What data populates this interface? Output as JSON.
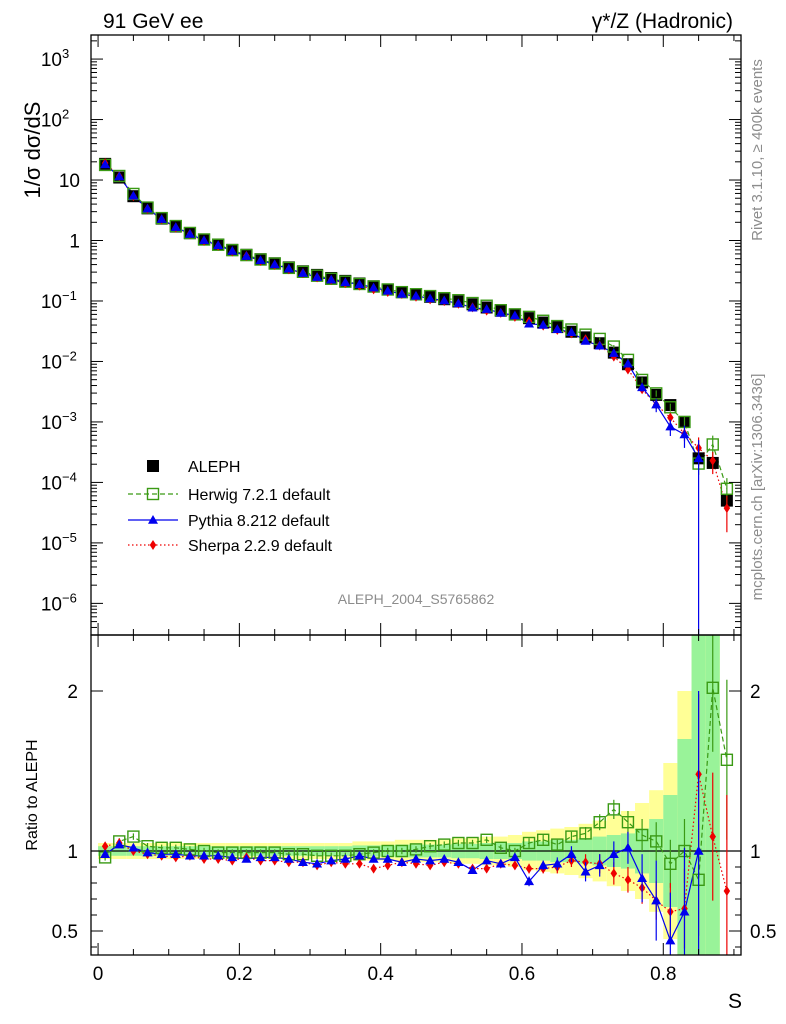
{
  "header": {
    "left": "91 GeV ee",
    "right": "γ*/Z (Hadronic)"
  },
  "side": {
    "rivet": "Rivet 3.1.10, ≥ 400k events",
    "mcplots": "mcplots.cern.ch [arXiv:1306.3436]"
  },
  "analysis_id": "ALEPH_2004_S5765862",
  "chart_data": {
    "type": "line",
    "title": "γ*/Z (Hadronic)",
    "xlabel": "S",
    "ylabel": "1/σ dσ/dS",
    "ratio_ylabel": "Ratio to ALEPH",
    "xlim": [
      -0.01,
      0.91
    ],
    "ylim": [
      3e-07,
      2500
    ],
    "yscale": "log",
    "ratio_ylim": [
      0.35,
      2.35
    ],
    "legend_position": "lower-left",
    "x_ticks": [
      "0",
      "0.2",
      "0.4",
      "0.6",
      "0.8"
    ],
    "x_tick_values": [
      0,
      0.2,
      0.4,
      0.6,
      0.8
    ],
    "y_ticks": [
      {
        "base": "10",
        "exp": "3",
        "v": 1000
      },
      {
        "base": "10",
        "exp": "2",
        "v": 100
      },
      {
        "base": "10",
        "exp": "",
        "v": 10
      },
      {
        "base": "1",
        "exp": "",
        "v": 1
      },
      {
        "base": "10",
        "exp": "−1",
        "v": 0.1
      },
      {
        "base": "10",
        "exp": "−2",
        "v": 0.01
      },
      {
        "base": "10",
        "exp": "−3",
        "v": 0.001
      },
      {
        "base": "10",
        "exp": "−4",
        "v": 0.0001
      },
      {
        "base": "10",
        "exp": "−5",
        "v": 1e-05
      },
      {
        "base": "10",
        "exp": "−6",
        "v": 1e-06
      }
    ],
    "ratio_ticks": [
      {
        "label": "2",
        "v": 2
      },
      {
        "label": "1",
        "v": 1
      },
      {
        "label": "0.5",
        "v": 0.5
      }
    ],
    "x": [
      0.01,
      0.03,
      0.05,
      0.07,
      0.09,
      0.11,
      0.13,
      0.15,
      0.17,
      0.19,
      0.21,
      0.23,
      0.25,
      0.27,
      0.29,
      0.31,
      0.33,
      0.35,
      0.37,
      0.39,
      0.41,
      0.43,
      0.45,
      0.47,
      0.49,
      0.51,
      0.53,
      0.55,
      0.57,
      0.59,
      0.61,
      0.63,
      0.65,
      0.67,
      0.69,
      0.71,
      0.73,
      0.75,
      0.77,
      0.79,
      0.81,
      0.83,
      0.85,
      0.87,
      0.89
    ],
    "series": [
      {
        "name": "ALEPH",
        "color": "#000000",
        "style": "data",
        "values": [
          18.5,
          11.0,
          5.4,
          3.4,
          2.3,
          1.7,
          1.32,
          1.04,
          0.86,
          0.7,
          0.58,
          0.49,
          0.42,
          0.36,
          0.31,
          0.27,
          0.24,
          0.215,
          0.195,
          0.175,
          0.155,
          0.14,
          0.128,
          0.117,
          0.107,
          0.098,
          0.088,
          0.078,
          0.069,
          0.06,
          0.052,
          0.044,
          0.037,
          0.031,
          0.025,
          0.02,
          0.014,
          0.009,
          0.0045,
          0.0028,
          0.0019,
          0.001,
          0.00025,
          0.00021,
          5e-05
        ],
        "band_inner": [
          0.03,
          0.03,
          0.03,
          0.03,
          0.03,
          0.03,
          0.03,
          0.03,
          0.03,
          0.03,
          0.03,
          0.03,
          0.03,
          0.03,
          0.03,
          0.03,
          0.03,
          0.03,
          0.035,
          0.035,
          0.035,
          0.04,
          0.04,
          0.04,
          0.04,
          0.045,
          0.045,
          0.05,
          0.05,
          0.05,
          0.06,
          0.06,
          0.07,
          0.07,
          0.08,
          0.09,
          0.1,
          0.11,
          0.14,
          0.2,
          0.35,
          0.7,
          2.0,
          2.0,
          0.0
        ],
        "band_outer": [
          0.05,
          0.05,
          0.05,
          0.05,
          0.05,
          0.05,
          0.05,
          0.05,
          0.05,
          0.05,
          0.05,
          0.05,
          0.05,
          0.05,
          0.05,
          0.05,
          0.05,
          0.05,
          0.06,
          0.06,
          0.06,
          0.07,
          0.07,
          0.07,
          0.07,
          0.08,
          0.08,
          0.09,
          0.09,
          0.1,
          0.12,
          0.13,
          0.14,
          0.15,
          0.17,
          0.19,
          0.22,
          0.25,
          0.3,
          0.38,
          0.55,
          1.0,
          2.0,
          2.0,
          0.0
        ]
      },
      {
        "name": "Herwig 7.2.1 default",
        "color": "#3a9a14",
        "style": "dashed",
        "marker": "open-square",
        "ratio": [
          0.96,
          1.06,
          1.09,
          1.03,
          1.02,
          1.02,
          1.01,
          1.0,
          0.99,
          0.99,
          0.99,
          0.99,
          0.99,
          0.98,
          0.98,
          0.97,
          0.97,
          0.97,
          0.98,
          0.99,
          1.0,
          1.0,
          1.01,
          1.03,
          1.04,
          1.05,
          1.05,
          1.07,
          1.02,
          1.0,
          1.05,
          1.07,
          1.04,
          1.09,
          1.11,
          1.18,
          1.26,
          1.18,
          1.1,
          1.06,
          0.92,
          1.0,
          0.82,
          2.02,
          1.57
        ],
        "ratio_err": [
          0.02,
          0.02,
          0.02,
          0.02,
          0.02,
          0.02,
          0.02,
          0.02,
          0.02,
          0.02,
          0.02,
          0.02,
          0.02,
          0.02,
          0.02,
          0.02,
          0.02,
          0.02,
          0.02,
          0.02,
          0.02,
          0.02,
          0.02,
          0.02,
          0.02,
          0.02,
          0.02,
          0.02,
          0.02,
          0.02,
          0.03,
          0.03,
          0.03,
          0.03,
          0.04,
          0.05,
          0.06,
          0.07,
          0.1,
          0.12,
          0.15,
          0.2,
          0.35,
          0.4,
          0.5
        ]
      },
      {
        "name": "Pythia 8.212 default",
        "color": "#0000ee",
        "style": "solid",
        "marker": "triangle",
        "ratio": [
          0.98,
          1.04,
          1.02,
          0.99,
          0.98,
          0.98,
          0.97,
          0.97,
          0.97,
          0.96,
          0.95,
          0.96,
          0.96,
          0.95,
          0.93,
          0.92,
          0.94,
          0.95,
          0.97,
          0.95,
          0.95,
          0.93,
          0.95,
          0.94,
          0.95,
          0.93,
          0.88,
          0.94,
          0.92,
          0.96,
          0.81,
          0.91,
          0.92,
          0.98,
          0.87,
          0.91,
          0.98,
          1.02,
          0.83,
          0.69,
          0.44,
          0.62,
          1.0,
          null,
          null
        ],
        "ratio_err": [
          0.01,
          0.01,
          0.01,
          0.01,
          0.01,
          0.01,
          0.01,
          0.01,
          0.01,
          0.01,
          0.01,
          0.01,
          0.01,
          0.01,
          0.01,
          0.01,
          0.01,
          0.01,
          0.01,
          0.01,
          0.01,
          0.01,
          0.01,
          0.02,
          0.02,
          0.02,
          0.02,
          0.02,
          0.02,
          0.02,
          0.03,
          0.03,
          0.04,
          0.05,
          0.06,
          0.07,
          0.08,
          0.1,
          0.15,
          0.25,
          0.3,
          0.4,
          1.0,
          0,
          0
        ]
      },
      {
        "name": "Sherpa 2.2.9 default",
        "color": "#ee0000",
        "style": "dotted",
        "marker": "diamond",
        "ratio": [
          1.03,
          1.05,
          1.0,
          0.98,
          0.97,
          0.96,
          0.97,
          0.95,
          0.95,
          0.94,
          0.96,
          0.94,
          0.94,
          0.93,
          0.93,
          0.91,
          0.93,
          0.92,
          0.92,
          0.89,
          0.91,
          0.93,
          0.92,
          0.91,
          0.93,
          0.92,
          0.89,
          0.89,
          0.92,
          0.91,
          0.89,
          0.89,
          0.9,
          0.94,
          0.93,
          0.92,
          0.86,
          0.82,
          0.77,
          0.69,
          0.62,
          0.64,
          1.48,
          1.09,
          0.75
        ],
        "ratio_err": [
          0.01,
          0.01,
          0.01,
          0.01,
          0.01,
          0.01,
          0.01,
          0.01,
          0.01,
          0.01,
          0.01,
          0.01,
          0.01,
          0.01,
          0.01,
          0.01,
          0.01,
          0.01,
          0.01,
          0.01,
          0.01,
          0.01,
          0.01,
          0.02,
          0.02,
          0.02,
          0.02,
          0.02,
          0.02,
          0.02,
          0.03,
          0.03,
          0.04,
          0.04,
          0.05,
          0.06,
          0.07,
          0.08,
          0.1,
          0.12,
          0.18,
          0.25,
          0.5,
          0.4,
          0.6
        ]
      }
    ]
  }
}
